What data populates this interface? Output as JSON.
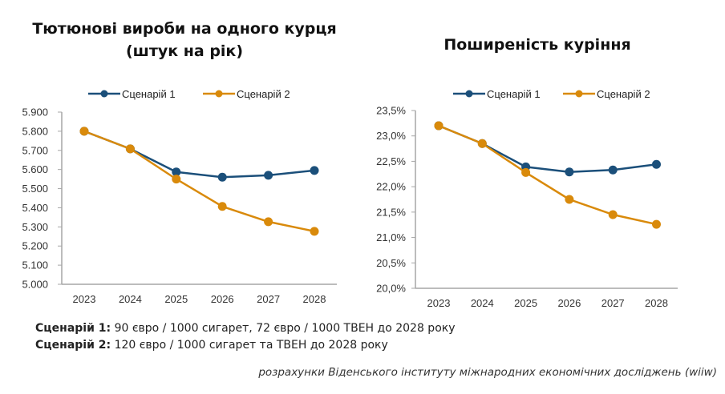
{
  "chart_data": [
    {
      "type": "line",
      "title": "Тютюнові вироби на одного курця (штук на рік)",
      "xlabel": "",
      "ylabel": "",
      "categories": [
        "2023",
        "2024",
        "2025",
        "2026",
        "2027",
        "2028"
      ],
      "ylim": [
        5000,
        5900
      ],
      "yticks": [
        5000,
        5100,
        5200,
        5300,
        5400,
        5500,
        5600,
        5700,
        5800,
        5900
      ],
      "ytick_labels": [
        "5.000",
        "5.100",
        "5.200",
        "5.300",
        "5.400",
        "5.500",
        "5.600",
        "5.700",
        "5.800",
        "5.900"
      ],
      "grid": false,
      "legend": "top-center",
      "series": [
        {
          "name": "Сценарій 1",
          "color": "#1b4f7a",
          "values": [
            5800,
            5708,
            5587,
            5560,
            5570,
            5595
          ]
        },
        {
          "name": "Сценарій 2",
          "color": "#d98a0b",
          "values": [
            5800,
            5708,
            5550,
            5407,
            5327,
            5277
          ]
        }
      ]
    },
    {
      "type": "line",
      "title": "Поширеність куріння",
      "xlabel": "",
      "ylabel": "",
      "categories": [
        "2023",
        "2024",
        "2025",
        "2026",
        "2027",
        "2028"
      ],
      "ylim": [
        20.0,
        23.5
      ],
      "yticks": [
        20.0,
        20.5,
        21.0,
        21.5,
        22.0,
        22.5,
        23.0,
        23.5
      ],
      "ytick_labels": [
        "20,0%",
        "20,5%",
        "21,0%",
        "21,5%",
        "22,0%",
        "22,5%",
        "23,0%",
        "23,5%"
      ],
      "grid": false,
      "legend": "top-center",
      "series": [
        {
          "name": "Сценарій 1",
          "color": "#1b4f7a",
          "values": [
            23.2,
            22.85,
            22.39,
            22.29,
            22.33,
            22.44
          ]
        },
        {
          "name": "Сценарій 2",
          "color": "#d98a0b",
          "values": [
            23.2,
            22.85,
            22.28,
            21.75,
            21.45,
            21.26
          ]
        }
      ]
    }
  ],
  "notes": {
    "s1_label": "Сценарій 1:",
    "s1_text": " 90 євро / 1000 сигарет, 72 євро / 1000 ТВЕН до 2028 року",
    "s2_label": "Сценарій 2:",
    "s2_text": " 120 євро / 1000 сигарет та ТВЕН до 2028 року"
  },
  "source": "розрахунки Віденського інституту міжнародних економічних досліджень (wiiw)"
}
